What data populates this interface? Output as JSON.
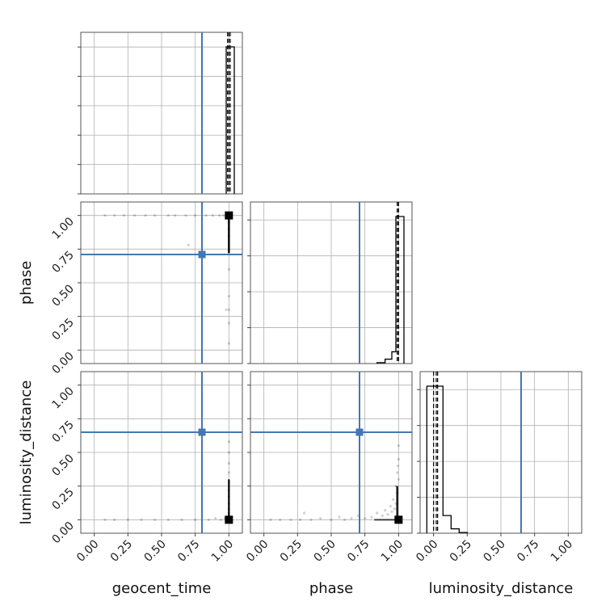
{
  "chart_data": {
    "type": "corner",
    "parameters": [
      "geocent_time",
      "phase",
      "luminosity_distance"
    ],
    "tick_labels": [
      "0.00",
      "0.25",
      "0.50",
      "0.75",
      "1.00"
    ],
    "axis_range": [
      -0.1,
      1.1
    ],
    "grid": true,
    "truths": {
      "geocent_time": 0.8,
      "phase": 0.71,
      "luminosity_distance": 0.65
    },
    "truth_color": "#4477b0",
    "sample_color": "#000000",
    "histograms": [
      {
        "parameter": "geocent_time",
        "bin_edges": [
          0.98,
          1.04
        ],
        "counts": [
          1.0
        ],
        "quantiles": [
          0.99,
          1.0,
          1.01
        ]
      },
      {
        "parameter": "phase",
        "bin_edges": [
          0.84,
          0.9,
          0.95,
          0.98,
          1.04
        ],
        "counts": [
          0.006,
          0.03,
          0.08,
          1.0
        ],
        "quantiles": [
          0.99,
          1.0,
          1.0
        ]
      },
      {
        "parameter": "luminosity_distance",
        "bin_edges": [
          -0.05,
          0.01,
          0.07,
          0.13,
          0.19,
          0.25
        ],
        "counts": [
          1.0,
          1.0,
          0.12,
          0.03,
          0.005
        ],
        "quantiles": [
          0.0,
          0.02,
          0.03
        ]
      }
    ],
    "scatter": [
      {
        "x_param": "geocent_time",
        "y_param": "phase",
        "points": [
          [
            0.08,
            1.0
          ],
          [
            0.15,
            1.0
          ],
          [
            0.22,
            1.0
          ],
          [
            0.3,
            1.0
          ],
          [
            0.38,
            1.0
          ],
          [
            0.45,
            1.0
          ],
          [
            0.55,
            1.0
          ],
          [
            0.6,
            1.0
          ],
          [
            0.68,
            1.0
          ],
          [
            0.75,
            1.0
          ],
          [
            0.83,
            1.0
          ],
          [
            0.88,
            1.0
          ],
          [
            0.93,
            1.0
          ],
          [
            0.96,
            1.0
          ],
          [
            0.98,
            1.0
          ],
          [
            0.99,
            1.0
          ],
          [
            0.7,
            0.78
          ],
          [
            0.98,
            0.3
          ],
          [
            1.0,
            0.3
          ],
          [
            1.0,
            0.05
          ],
          [
            1.0,
            0.2
          ],
          [
            1.0,
            0.4
          ],
          [
            1.0,
            0.6
          ],
          [
            1.0,
            0.85
          ],
          [
            1.0,
            0.9
          ],
          [
            1.0,
            0.95
          ],
          [
            1.0,
            0.98
          ]
        ],
        "peak": [
          1.0,
          1.0
        ]
      },
      {
        "x_param": "geocent_time",
        "y_param": "luminosity_distance",
        "points": [
          [
            0.08,
            0.0
          ],
          [
            0.15,
            0.0
          ],
          [
            0.25,
            0.0
          ],
          [
            0.35,
            0.0
          ],
          [
            0.45,
            0.0
          ],
          [
            0.55,
            0.0
          ],
          [
            0.65,
            0.0
          ],
          [
            0.75,
            0.0
          ],
          [
            0.85,
            0.0
          ],
          [
            0.9,
            0.01
          ],
          [
            0.94,
            0.0
          ],
          [
            0.97,
            0.01
          ],
          [
            1.0,
            0.58
          ],
          [
            1.0,
            0.5
          ],
          [
            1.0,
            0.42
          ],
          [
            1.0,
            0.35
          ],
          [
            1.0,
            0.28
          ],
          [
            1.0,
            0.22
          ],
          [
            1.0,
            0.17
          ],
          [
            1.0,
            0.12
          ],
          [
            1.0,
            0.08
          ],
          [
            1.0,
            0.05
          ],
          [
            1.0,
            0.03
          ],
          [
            0.99,
            0.02
          ]
        ],
        "peak": [
          1.0,
          0.0
        ]
      },
      {
        "x_param": "phase",
        "y_param": "luminosity_distance",
        "points": [
          [
            0.05,
            0.0
          ],
          [
            0.12,
            0.0
          ],
          [
            0.2,
            0.0
          ],
          [
            0.27,
            0.0
          ],
          [
            0.3,
            0.05
          ],
          [
            0.35,
            0.0
          ],
          [
            0.42,
            0.01
          ],
          [
            0.5,
            0.0
          ],
          [
            0.56,
            0.02
          ],
          [
            0.6,
            0.0
          ],
          [
            0.65,
            0.01
          ],
          [
            0.7,
            0.03
          ],
          [
            0.75,
            0.01
          ],
          [
            0.8,
            0.02
          ],
          [
            0.84,
            0.05
          ],
          [
            0.88,
            0.03
          ],
          [
            0.9,
            0.07
          ],
          [
            0.92,
            0.04
          ],
          [
            0.94,
            0.1
          ],
          [
            0.95,
            0.06
          ],
          [
            0.96,
            0.15
          ],
          [
            0.97,
            0.08
          ],
          [
            0.98,
            0.25
          ],
          [
            0.98,
            0.12
          ],
          [
            0.99,
            0.35
          ],
          [
            0.99,
            0.2
          ],
          [
            1.0,
            0.45
          ],
          [
            1.0,
            0.55
          ],
          [
            1.0,
            0.3
          ],
          [
            0.995,
            0.4
          ]
        ],
        "peak": [
          1.0,
          0.0
        ]
      }
    ]
  }
}
